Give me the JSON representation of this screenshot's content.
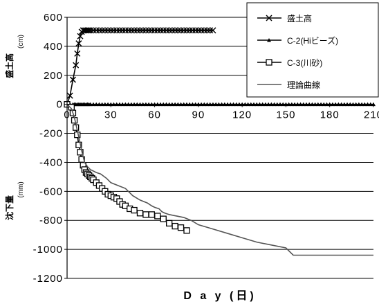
{
  "chart_data": {
    "type": "line",
    "xlabel": "D a y (日)",
    "ylabel_top": "盛土高",
    "ylabel_top_unit": "(cm)",
    "ylabel_bottom": "沈下量",
    "ylabel_bottom_unit": "(mm)",
    "xlim": [
      0,
      210
    ],
    "ylim": [
      -1200,
      600
    ],
    "x_ticks": [
      0,
      30,
      60,
      90,
      120,
      150,
      180,
      210
    ],
    "x_tick_labels": [
      "0",
      "30",
      "60",
      "90",
      "120",
      "150",
      "180",
      "210"
    ],
    "y_ticks": [
      600,
      400,
      200,
      0,
      -200,
      -400,
      -600,
      -800,
      -1000,
      -1200
    ],
    "y_tick_labels": [
      "600",
      "400",
      "200",
      "0",
      "-200",
      "-400",
      "-600",
      "-800",
      "-1000",
      "-1200"
    ],
    "grid": "horizontal",
    "legend_position": "top-right",
    "series": [
      {
        "name": "盛土高",
        "marker": "x",
        "color": "#000000",
        "x": [
          0,
          2,
          4,
          6,
          7,
          8,
          9,
          10,
          11,
          12,
          13,
          14,
          15,
          16,
          18,
          20,
          22,
          24,
          26,
          28,
          30,
          32,
          34,
          36,
          38,
          40,
          42,
          44,
          46,
          48,
          50,
          52,
          54,
          56,
          58,
          60,
          62,
          64,
          66,
          68,
          70,
          72,
          74,
          76,
          78,
          80,
          82,
          84,
          86,
          88,
          90,
          92,
          94,
          96,
          98,
          100
        ],
        "y": [
          0,
          60,
          170,
          270,
          350,
          420,
          470,
          500,
          510,
          510,
          510,
          510,
          510,
          510,
          510,
          510,
          510,
          510,
          510,
          510,
          510,
          510,
          510,
          510,
          510,
          510,
          510,
          510,
          510,
          510,
          510,
          510,
          510,
          510,
          510,
          510,
          510,
          510,
          510,
          510,
          510,
          510,
          510,
          510,
          510,
          510,
          510,
          510,
          510,
          510,
          510,
          510,
          510,
          510,
          510,
          510
        ]
      },
      {
        "name": "C-2(Hiビーズ)",
        "marker": "triangle",
        "color": "#000000",
        "x": [
          0,
          2,
          4,
          5,
          6,
          7,
          8,
          9,
          10,
          11,
          12,
          13,
          14,
          15,
          16,
          18,
          20,
          22,
          24,
          26,
          28,
          30,
          32,
          34,
          36,
          38,
          40,
          42,
          44,
          46,
          48,
          50,
          52,
          54,
          56,
          58,
          60,
          62,
          64,
          66,
          68,
          70,
          72,
          74,
          76,
          78,
          80,
          82,
          84,
          86,
          88,
          90,
          92,
          94,
          96,
          98,
          100,
          102,
          104,
          106,
          108,
          110,
          112,
          114,
          116,
          118,
          120,
          122,
          124,
          126,
          128,
          130,
          132,
          134,
          136,
          138,
          140,
          142,
          144,
          146,
          148,
          150,
          152,
          154,
          156,
          158,
          160,
          162,
          164,
          166,
          168,
          170,
          172,
          174,
          176,
          178,
          180,
          182,
          184,
          186,
          188,
          190,
          192,
          194,
          196,
          198,
          200,
          202,
          204,
          206,
          208,
          210
        ],
        "y": [
          0,
          0,
          0,
          0,
          0,
          0,
          0,
          0,
          0,
          0,
          0,
          0,
          0,
          0,
          0,
          0,
          0,
          0,
          0,
          0,
          0,
          0,
          0,
          0,
          0,
          0,
          0,
          0,
          0,
          0,
          0,
          0,
          0,
          0,
          0,
          0,
          0,
          0,
          0,
          0,
          0,
          0,
          0,
          0,
          0,
          0,
          0,
          0,
          0,
          0,
          0,
          0,
          0,
          0,
          0,
          0,
          0,
          0,
          0,
          0,
          0,
          0,
          0,
          0,
          0,
          0,
          0,
          0,
          0,
          0,
          0,
          0,
          0,
          0,
          0,
          0,
          0,
          0,
          0,
          0,
          0,
          0,
          0,
          0,
          0,
          0,
          0,
          0,
          0,
          0,
          0,
          0,
          0,
          0,
          0,
          0,
          0,
          0,
          0,
          0,
          0,
          0,
          0,
          0,
          0,
          0,
          0,
          0,
          0,
          0,
          0,
          0
        ]
      },
      {
        "name": "C-3(川砂)",
        "marker": "square",
        "color": "#000000",
        "x": [
          0,
          3,
          4,
          5,
          6,
          7,
          8,
          9,
          10,
          11,
          12,
          13,
          14,
          15,
          16,
          17,
          18,
          20,
          22,
          24,
          26,
          28,
          30,
          32,
          34,
          36,
          38,
          40,
          43,
          46,
          50,
          54,
          58,
          62,
          66,
          70,
          74,
          78,
          82
        ],
        "y": [
          0,
          -20,
          -60,
          -110,
          -160,
          -210,
          -280,
          -330,
          -380,
          -420,
          -450,
          -470,
          -480,
          -490,
          -500,
          -510,
          -520,
          -540,
          -560,
          -580,
          -600,
          -620,
          -630,
          -640,
          -650,
          -670,
          -690,
          -700,
          -720,
          -730,
          -750,
          -760,
          -760,
          -770,
          -790,
          -820,
          -840,
          -850,
          -870
        ]
      },
      {
        "name": "理論曲線",
        "marker": "none",
        "color": "#555555",
        "x": [
          0,
          3,
          5,
          7,
          9,
          10,
          11,
          12,
          14,
          16,
          18,
          20,
          23,
          27,
          30,
          35,
          40,
          45,
          50,
          55,
          58,
          60,
          63,
          65,
          67,
          70,
          75,
          80,
          85,
          90,
          100,
          110,
          120,
          130,
          140,
          150,
          155,
          165,
          180,
          195,
          210
        ],
        "y": [
          0,
          -30,
          -90,
          -180,
          -270,
          -320,
          -360,
          -400,
          -430,
          -450,
          -460,
          -470,
          -480,
          -510,
          -540,
          -560,
          -580,
          -630,
          -660,
          -680,
          -700,
          -710,
          -720,
          -740,
          -750,
          -760,
          -770,
          -780,
          -800,
          -830,
          -860,
          -890,
          -920,
          -950,
          -970,
          -990,
          -1040,
          -1040,
          -1040,
          -1040,
          -1040
        ]
      }
    ]
  }
}
